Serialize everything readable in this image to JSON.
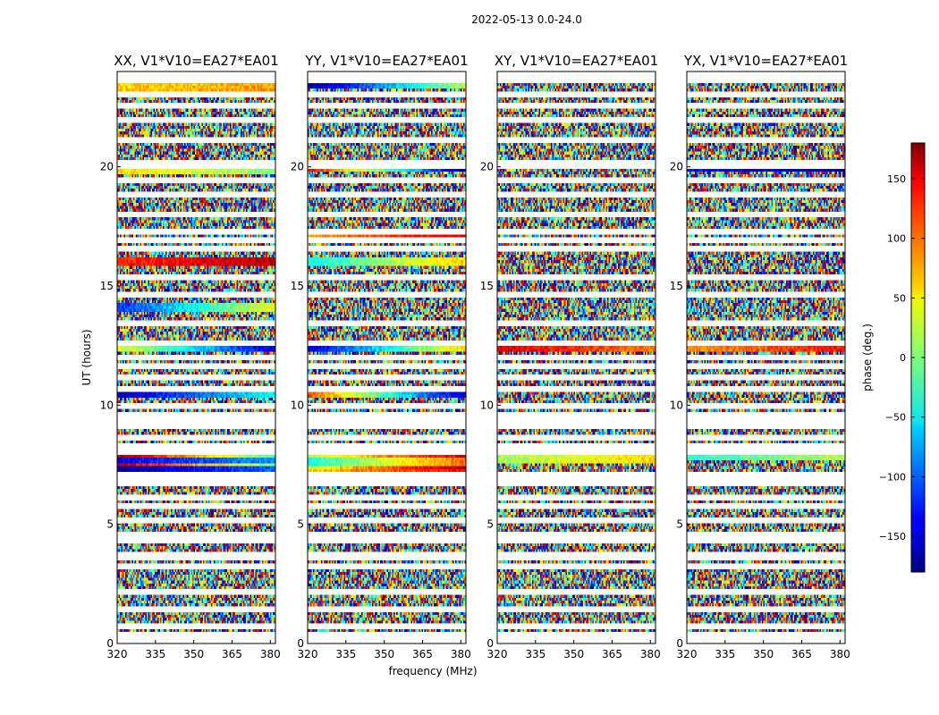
{
  "chart_data": {
    "type": "heatmap",
    "suptitle": "2022-05-13 0.0-24.0",
    "xlabel": "frequency (MHz)",
    "ylabel": "UT (hours)",
    "xlim": [
      320,
      382
    ],
    "ylim": [
      0,
      24
    ],
    "xticks": [
      320,
      335,
      350,
      365,
      380
    ],
    "yticks": [
      0,
      5,
      10,
      15,
      20
    ],
    "panels": [
      {
        "title": "XX, V1*V10=EA27*EA01",
        "coherent_bands": [
          {
            "t": 23.3,
            "start": 60,
            "end": 80,
            "slope": 0
          },
          {
            "t": 19.8,
            "start": 60,
            "end": 0,
            "slope": 0
          },
          {
            "t": 16.0,
            "start": 120,
            "end": 160,
            "slope": 0
          },
          {
            "t": 14.0,
            "start": -120,
            "end": 40,
            "slope": 0
          },
          {
            "t": 12.3,
            "start": 40,
            "end": -150,
            "slope": 0
          },
          {
            "t": 10.4,
            "start": -160,
            "end": -40,
            "slope": 0
          },
          {
            "t": 7.9,
            "start": 170,
            "end": -20,
            "slope": 0
          },
          {
            "t": 7.7,
            "start": -140,
            "end": -80,
            "slope": 0
          },
          {
            "t": 7.5,
            "start": 160,
            "end": 0,
            "slope": 0
          },
          {
            "t": 7.3,
            "start": -170,
            "end": -100,
            "slope": 0
          }
        ]
      },
      {
        "title": "YY, V1*V10=EA27*EA01",
        "coherent_bands": [
          {
            "t": 23.4,
            "start": -170,
            "end": 20,
            "slope": 0
          },
          {
            "t": 19.9,
            "start": 140,
            "end": -170,
            "slope": 0
          },
          {
            "t": 17.0,
            "start": 80,
            "end": 150,
            "slope": 0
          },
          {
            "t": 15.9,
            "start": -40,
            "end": 60,
            "slope": 0
          },
          {
            "t": 12.3,
            "start": -150,
            "end": 60,
            "slope": 0
          },
          {
            "t": 10.4,
            "start": 110,
            "end": -160,
            "slope": 0
          },
          {
            "t": 7.9,
            "start": 20,
            "end": 150,
            "slope": 0
          },
          {
            "t": 7.6,
            "start": -40,
            "end": 100,
            "slope": 0
          },
          {
            "t": 7.4,
            "start": 30,
            "end": 170,
            "slope": 0
          },
          {
            "t": 7.2,
            "start": 60,
            "end": 140,
            "slope": 0
          }
        ]
      },
      {
        "title": "XY, V1*V10=EA27*EA01",
        "coherent_bands": [
          {
            "t": 12.3,
            "start": 150,
            "end": 90,
            "slope": 0
          },
          {
            "t": 7.7,
            "start": 10,
            "end": 60,
            "slope": 0
          }
        ]
      },
      {
        "title": "YX, V1*V10=EA27*EA01",
        "coherent_bands": [
          {
            "t": 19.9,
            "start": -130,
            "end": -160,
            "slope": 0
          },
          {
            "t": 12.4,
            "start": 80,
            "end": 130,
            "slope": 0
          },
          {
            "t": 7.8,
            "start": -30,
            "end": 20,
            "slope": 0
          }
        ]
      }
    ],
    "flagged_rows_ut": [
      0.1,
      0.4,
      0.7,
      1.4,
      2.1,
      3.3,
      3.6,
      3.7,
      4.3,
      4.6,
      5.2,
      5.7,
      6.1,
      6.7,
      6.9,
      7.1,
      8.0,
      8.3,
      8.6,
      9.1,
      9.3,
      9.6,
      9.9,
      10.7,
      11.2,
      11.6,
      12.0,
      12.6,
      13.4,
      14.6,
      15.3,
      16.6,
      16.9,
      17.3,
      18.0,
      18.8,
      19.4,
      20.0,
      20.2,
      21.1,
      22.0,
      22.5,
      23.0,
      23.6,
      23.9
    ],
    "dense_flag_hours": [
      9.0,
      10.0
    ],
    "colorbar": {
      "label": "phase (deg.)",
      "range": [
        -180,
        180
      ],
      "ticks": [
        150,
        100,
        50,
        0,
        -50,
        -100,
        -150
      ],
      "tick_labels": [
        "150",
        "100",
        "50",
        "0",
        "−50",
        "−100",
        "−150"
      ],
      "colormap": "jet"
    }
  }
}
